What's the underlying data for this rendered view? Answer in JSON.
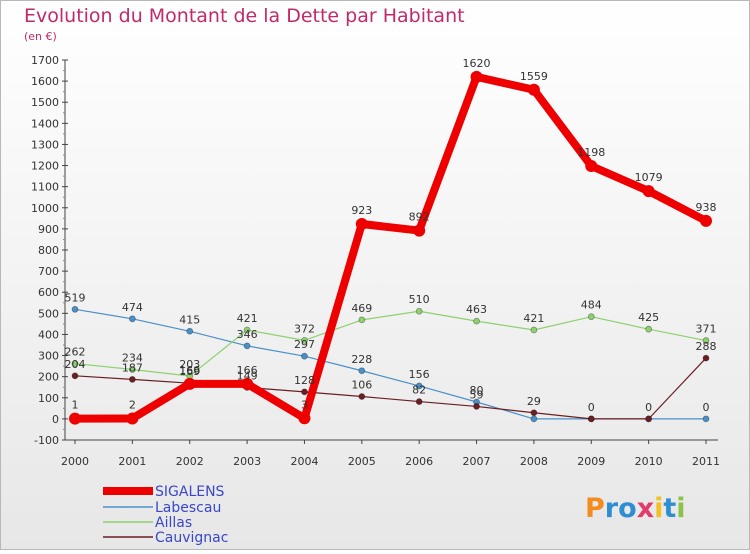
{
  "chart_data": {
    "type": "line",
    "title": "Evolution du Montant de la Dette par Habitant",
    "subtitle": "(en €)",
    "x": [
      "2000",
      "2001",
      "2002",
      "2003",
      "2004",
      "2005",
      "2006",
      "2007",
      "2008",
      "2009",
      "2010",
      "2011"
    ],
    "ylim": [
      -100,
      1700
    ],
    "yticks": [
      -100,
      0,
      100,
      200,
      300,
      400,
      500,
      600,
      700,
      800,
      900,
      1000,
      1100,
      1200,
      1300,
      1400,
      1500,
      1600,
      1700
    ],
    "grid": false,
    "legend_position": "bottom-left",
    "series": [
      {
        "name": "Labescau",
        "color": "#4a90c8",
        "values": [
          519,
          474,
          415,
          346,
          297,
          228,
          156,
          80,
          0,
          0,
          0,
          0
        ],
        "labels": [
          "519",
          "474",
          "415",
          "346",
          "297",
          "228",
          "156",
          "80",
          "",
          "",
          "",
          "0"
        ]
      },
      {
        "name": "Aillas",
        "color": "#8dd16e",
        "values": [
          262,
          234,
          203,
          421,
          372,
          469,
          510,
          463,
          421,
          484,
          425,
          371
        ],
        "labels": [
          "262",
          "234",
          "203",
          "421",
          "372",
          "469",
          "510",
          "463",
          "421",
          "484",
          "425",
          "371"
        ]
      },
      {
        "name": "Cauvignac",
        "color": "#6b1f23",
        "values": [
          204,
          187,
          169,
          149,
          128,
          106,
          82,
          59,
          29,
          0,
          0,
          288
        ],
        "labels": [
          "204",
          "187",
          "169",
          "149",
          "128",
          "106",
          "82",
          "59",
          "29",
          "0",
          "0",
          "288"
        ]
      },
      {
        "name": "SIGALENS",
        "color": "#ee0000",
        "values": [
          1,
          2,
          166,
          166,
          3,
          923,
          892,
          1620,
          1559,
          1198,
          1079,
          938
        ],
        "labels": [
          "1",
          "2",
          "166",
          "166",
          "3",
          "923",
          "892",
          "1620",
          "1559",
          "1198",
          "1079",
          "938"
        ]
      }
    ]
  },
  "legend": {
    "items": [
      {
        "label": "SIGALENS",
        "color": "#ee0000"
      },
      {
        "label": "Labescau",
        "color": "#4a90c8"
      },
      {
        "label": "Aillas",
        "color": "#8dd16e"
      },
      {
        "label": "Cauvignac",
        "color": "#6b1f23"
      }
    ]
  },
  "logo": {
    "text": "Proxiti"
  }
}
